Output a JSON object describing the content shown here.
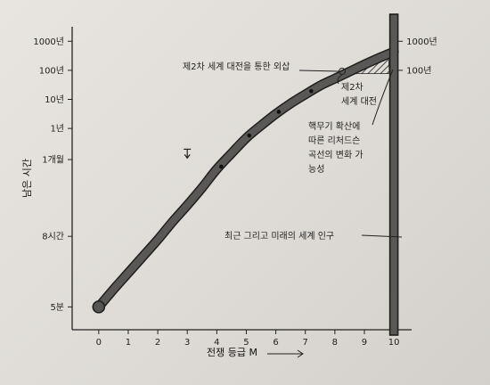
{
  "chart_data": {
    "type": "line",
    "xlabel": "전쟁 등급 M",
    "ylabel": "남은 시간",
    "x_ticks": [
      "0",
      "1",
      "2",
      "3",
      "4",
      "5",
      "6",
      "7",
      "8",
      "9",
      "10"
    ],
    "xlim": [
      -0.9,
      10.6
    ],
    "y_ticks": [
      {
        "label": "5분",
        "level": 0
      },
      {
        "label": "8시간",
        "level": 1.7
      },
      {
        "label": "1개월",
        "level": 3.55
      },
      {
        "label": "1년",
        "level": 4.3
      },
      {
        "label": "10년",
        "level": 5.0
      },
      {
        "label": "100년",
        "level": 5.7
      },
      {
        "label": "1000년",
        "level": 6.4
      }
    ],
    "right_ticks": [
      {
        "label": "1000년",
        "level": 6.4
      },
      {
        "label": "100년",
        "level": 5.7
      }
    ],
    "ylim": [
      -0.55,
      6.75
    ],
    "series": [
      {
        "values": [
          [
            0,
            0
          ],
          [
            0.5,
            0.42
          ],
          [
            1,
            0.82
          ],
          [
            1.5,
            1.22
          ],
          [
            2,
            1.62
          ],
          [
            2.5,
            2.05
          ],
          [
            3,
            2.45
          ],
          [
            3.5,
            2.87
          ],
          [
            4,
            3.32
          ],
          [
            4.5,
            3.7
          ],
          [
            5,
            4.07
          ],
          [
            5.5,
            4.37
          ],
          [
            6,
            4.65
          ],
          [
            6.5,
            4.9
          ],
          [
            7,
            5.12
          ],
          [
            7.5,
            5.33
          ],
          [
            8,
            5.5
          ],
          [
            8.5,
            5.67
          ],
          [
            9,
            5.84
          ],
          [
            9.5,
            6.0
          ],
          [
            10,
            6.15
          ]
        ]
      }
    ],
    "markers": [
      [
        4.15,
        3.38
      ],
      [
        5.1,
        4.13
      ],
      [
        6.1,
        4.7
      ],
      [
        7.2,
        5.2
      ]
    ],
    "bracket": {
      "x": 3.0,
      "level": 3.8
    },
    "hatch_region": {
      "x_from": 8.0,
      "x_to": 9.85
    },
    "vertical_bar_x": 10,
    "annotations": {
      "ww2_escape": "제2차 세계 대전을 통한 외삽",
      "ww2_line1": "제2차",
      "ww2_line2": "세계 대전",
      "nuclear_1": "핵무기 확산에",
      "nuclear_2": "따른 리처드슨",
      "nuclear_3": "곡선의 변화 가",
      "nuclear_4": "능성",
      "population": "최근 그리고 미래의 세계 인구"
    },
    "grid": false,
    "legend": "none"
  }
}
